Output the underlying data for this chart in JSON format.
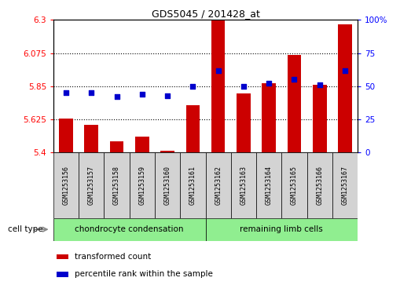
{
  "title": "GDS5045 / 201428_at",
  "samples": [
    "GSM1253156",
    "GSM1253157",
    "GSM1253158",
    "GSM1253159",
    "GSM1253160",
    "GSM1253161",
    "GSM1253162",
    "GSM1253163",
    "GSM1253164",
    "GSM1253165",
    "GSM1253166",
    "GSM1253167"
  ],
  "transformed_count": [
    5.63,
    5.59,
    5.475,
    5.51,
    5.41,
    5.72,
    6.295,
    5.8,
    5.87,
    6.06,
    5.86,
    6.27
  ],
  "percentile_rank": [
    45,
    45,
    42,
    44,
    43,
    50,
    62,
    50,
    52,
    55,
    51,
    62
  ],
  "bar_color": "#cc0000",
  "dot_color": "#0000cc",
  "ylim_left": [
    5.4,
    6.3
  ],
  "ylim_right": [
    0,
    100
  ],
  "yticks_left": [
    5.4,
    5.625,
    5.85,
    6.075,
    6.3
  ],
  "yticks_right": [
    0,
    25,
    50,
    75,
    100
  ],
  "ytick_labels_left": [
    "5.4",
    "5.625",
    "5.85",
    "6.075",
    "6.3"
  ],
  "ytick_labels_right": [
    "0",
    "25",
    "50",
    "75",
    "100%"
  ],
  "hlines": [
    5.625,
    5.85,
    6.075
  ],
  "cell_type_groups": [
    {
      "label": "chondrocyte condensation",
      "indices": [
        0,
        1,
        2,
        3,
        4,
        5
      ],
      "color": "#90ee90"
    },
    {
      "label": "remaining limb cells",
      "indices": [
        6,
        7,
        8,
        9,
        10,
        11
      ],
      "color": "#90ee90"
    }
  ],
  "cell_type_label": "cell type",
  "legend_items": [
    {
      "label": "transformed count",
      "color": "#cc0000"
    },
    {
      "label": "percentile rank within the sample",
      "color": "#0000cc"
    }
  ],
  "bar_width": 0.55,
  "background_color": "#ffffff",
  "label_box_color": "#d3d3d3"
}
